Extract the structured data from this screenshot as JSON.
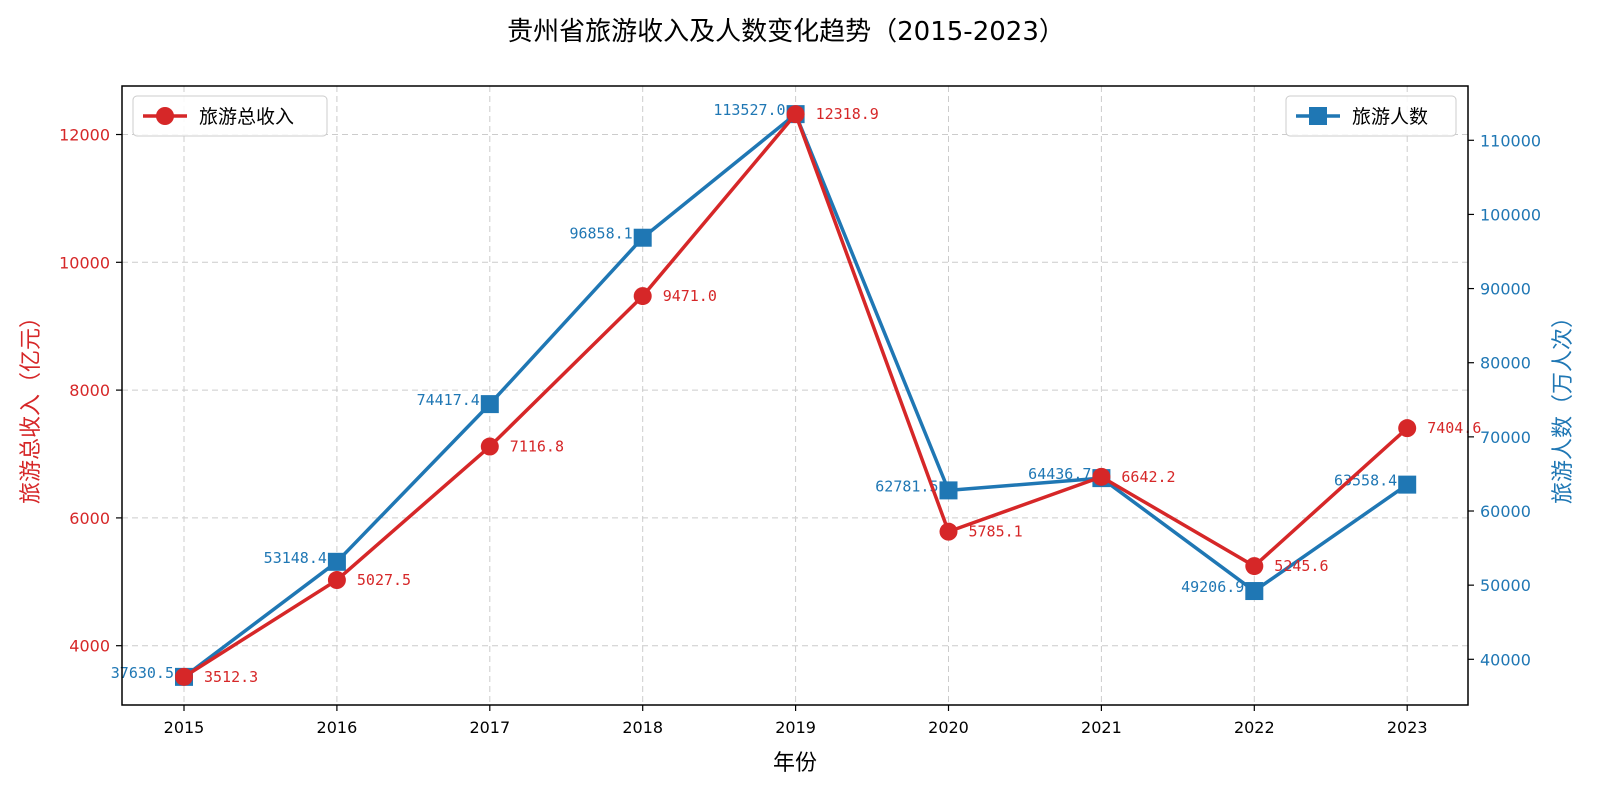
{
  "chart_data": {
    "type": "line",
    "title": "贵州省旅游收入及人数变化趋势（2015-2023）",
    "xlabel": "年份",
    "categories": [
      "2015",
      "2016",
      "2017",
      "2018",
      "2019",
      "2020",
      "2021",
      "2022",
      "2023"
    ],
    "grid": true,
    "series": [
      {
        "name": "旅游总收入",
        "axis": "left",
        "color": "#d62728",
        "marker": "circle",
        "values": [
          3512.3,
          5027.5,
          7116.8,
          9471.0,
          12318.9,
          5785.1,
          6642.2,
          5245.6,
          7404.6
        ],
        "labels": [
          "3512.3",
          "5027.5",
          "7116.8",
          "9471.0",
          "12318.9",
          "5785.1",
          "6642.2",
          "5245.6",
          "7404.6"
        ],
        "legend_position": "upper-left"
      },
      {
        "name": "旅游人数",
        "axis": "right",
        "color": "#1f77b4",
        "marker": "square",
        "values": [
          37630.5,
          53148.4,
          74417.4,
          96858.1,
          113527.0,
          62781.5,
          64436.7,
          49206.9,
          63558.4
        ],
        "labels": [
          "37630.5",
          "53148.4",
          "74417.4",
          "96858.1",
          "113527.0",
          "62781.5",
          "64436.7",
          "49206.9",
          "63558.4"
        ],
        "legend_position": "upper-right"
      }
    ],
    "y_left": {
      "label": "旅游总收入（亿元）",
      "ylim": [
        3071.97,
        12759.23
      ],
      "ticks": [
        4000,
        6000,
        8000,
        10000,
        12000
      ],
      "tick_labels": [
        "4000",
        "6000",
        "8000",
        "10000",
        "12000"
      ],
      "color": "#d62728"
    },
    "y_right": {
      "label": "旅游人数（万人次）",
      "ylim": [
        33836.9,
        117320.6
      ],
      "ticks": [
        40000,
        50000,
        60000,
        70000,
        80000,
        90000,
        100000,
        110000
      ],
      "tick_labels": [
        "40000",
        "50000",
        "60000",
        "70000",
        "80000",
        "90000",
        "100000",
        "110000"
      ],
      "color": "#1f77b4"
    }
  }
}
